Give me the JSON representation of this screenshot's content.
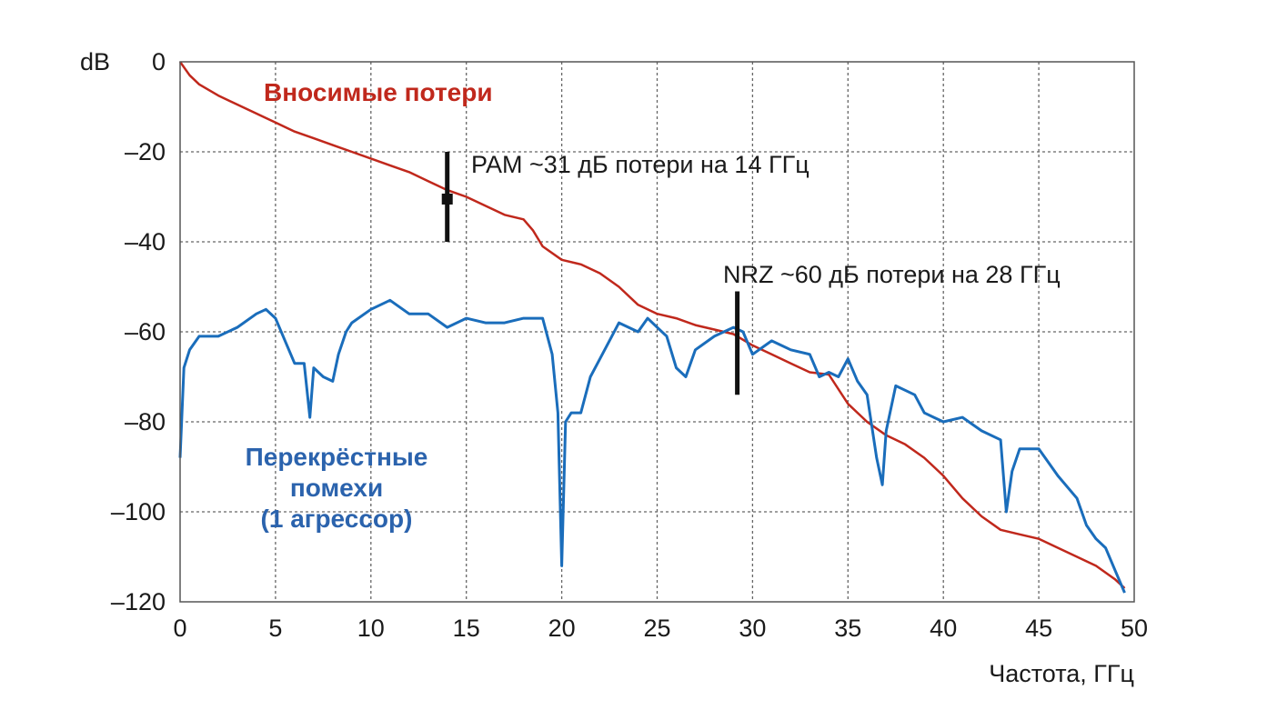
{
  "chart_data": {
    "type": "line",
    "xlabel": "Частота, ГГц",
    "ylabel": "dB",
    "xlim": [
      0,
      50
    ],
    "ylim": [
      -120,
      0
    ],
    "xticks": [
      "0",
      "5",
      "10",
      "15",
      "20",
      "25",
      "30",
      "35",
      "40",
      "45",
      "50"
    ],
    "yticks": [
      "0",
      "–20",
      "–40",
      "–60",
      "–80",
      "–100",
      "–120"
    ],
    "grid": true,
    "series": [
      {
        "name": "Вносимые потери",
        "color": "#c0281c",
        "x": [
          0,
          0.5,
          1,
          2,
          3,
          4,
          5,
          6,
          7,
          8,
          9,
          10,
          11,
          12,
          13,
          14,
          15,
          16,
          17,
          18,
          18.5,
          19,
          20,
          21,
          22,
          23,
          24,
          25,
          26,
          27,
          28,
          29,
          30,
          31,
          32,
          33,
          34,
          35,
          36,
          37,
          38,
          39,
          40,
          41,
          42,
          43,
          44,
          45,
          46,
          47,
          48,
          49,
          49.5
        ],
        "y": [
          0,
          -3,
          -5,
          -7.5,
          -9.5,
          -11.5,
          -13.5,
          -15.5,
          -17,
          -18.5,
          -20,
          -21.5,
          -23,
          -24.5,
          -26.5,
          -28.5,
          -30,
          -32,
          -34,
          -35,
          -37.5,
          -41,
          -44,
          -45,
          -47,
          -50,
          -54,
          -56,
          -57,
          -58.5,
          -59.5,
          -60.5,
          -63,
          -65,
          -67,
          -69,
          -69.5,
          -76,
          -80,
          -83,
          -85,
          -88,
          -92,
          -97,
          -101,
          -104,
          -105,
          -106,
          -108,
          -110,
          -112,
          -115,
          -117
        ]
      },
      {
        "name": "Перекрёстные помехи (1 агрессор)",
        "color": "#1a6dbb",
        "x": [
          0,
          0.2,
          0.5,
          1,
          2,
          3,
          4,
          4.5,
          5,
          5.5,
          6,
          6.5,
          6.8,
          7,
          7.5,
          8,
          8.3,
          8.7,
          9,
          10,
          11,
          12,
          13,
          14,
          15,
          16,
          17,
          18,
          19,
          19.5,
          19.8,
          20,
          20.2,
          20.5,
          21,
          21.5,
          22,
          23,
          24,
          24.5,
          25,
          25.5,
          26,
          26.5,
          27,
          28,
          29,
          29.5,
          30,
          31,
          32,
          33,
          33.5,
          34,
          34.5,
          35,
          35.5,
          36,
          36.5,
          36.8,
          37,
          37.5,
          38,
          38.5,
          39,
          39.5,
          40,
          41,
          42,
          43,
          43.3,
          43.6,
          44,
          45,
          46,
          47,
          47.5,
          48,
          48.5,
          49,
          49.5
        ],
        "y": [
          -88,
          -68,
          -64,
          -61,
          -61,
          -59,
          -56,
          -55,
          -57,
          -62,
          -67,
          -67,
          -79,
          -68,
          -70,
          -71,
          -65,
          -60,
          -58,
          -55,
          -53,
          -56,
          -56,
          -59,
          -57,
          -58,
          -58,
          -57,
          -57,
          -65,
          -78,
          -112,
          -80,
          -78,
          -78,
          -70,
          -66,
          -58,
          -60,
          -57,
          -59,
          -61,
          -68,
          -70,
          -64,
          -61,
          -59,
          -60,
          -65,
          -62,
          -64,
          -65,
          -70,
          -69,
          -70,
          -66,
          -71,
          -74,
          -88,
          -94,
          -82,
          -72,
          -73,
          -74,
          -78,
          -79,
          -80,
          -79,
          -82,
          -84,
          -100,
          -91,
          -86,
          -86,
          -92,
          -97,
          -103,
          -106,
          -108,
          -113,
          -118
        ]
      }
    ],
    "annotations": [
      {
        "text": "PAM ~31 дБ потери на 14 ГГц",
        "x": 14,
        "y": -30.5
      },
      {
        "text": "NRZ ~60 дБ потери на 28 ГГц",
        "x": 29.2,
        "y": -63
      }
    ],
    "series_labels": {
      "insertion_loss": "Вносимые потери",
      "crosstalk_line1": "Перекрёстные",
      "crosstalk_line2": "помехи",
      "crosstalk_line3": "(1 агрессор)"
    }
  }
}
